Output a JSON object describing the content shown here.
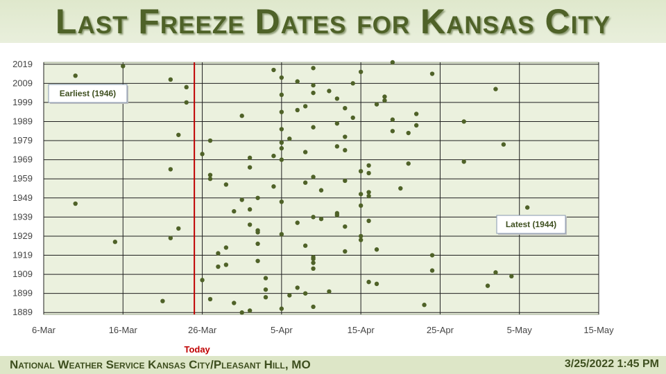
{
  "header": {
    "title": "Last Freeze Dates for Kansas City"
  },
  "footer": {
    "office": "National Weather Service  Kansas City/Pleasant Hill, MO",
    "timestamp": "3/25/2022 1:45 PM"
  },
  "colors": {
    "point": "#4f6228",
    "plot_bg": "#ebf1de",
    "grid": "#1e1e1e",
    "today_line": "#c00000",
    "title": "#4f6228"
  },
  "chart_data": {
    "type": "scatter",
    "title": "Last Freeze Dates for Kansas City",
    "x_tick_labels": [
      "6-Mar",
      "16-Mar",
      "26-Mar",
      "5-Apr",
      "15-Apr",
      "25-Apr",
      "5-May",
      "15-May"
    ],
    "x_ticks": [
      "03-06",
      "03-16",
      "03-26",
      "04-05",
      "04-15",
      "04-25",
      "05-05",
      "05-15"
    ],
    "xlim": [
      "03-06",
      "05-15"
    ],
    "y_ticks": [
      1889,
      1899,
      1909,
      1919,
      1929,
      1939,
      1949,
      1959,
      1969,
      1979,
      1989,
      1999,
      2009,
      2019
    ],
    "ylim": [
      1888,
      2020
    ],
    "grid": true,
    "today": {
      "label": "Today",
      "date": "03-25"
    },
    "annotations": [
      {
        "text": "Earliest (1946)",
        "year": 1946,
        "date": "03-10"
      },
      {
        "text": "Latest (1944)",
        "year": 1944,
        "date": "05-06"
      }
    ],
    "points": [
      {
        "year": 2020,
        "date": "04-19"
      },
      {
        "year": 2018,
        "date": "03-16"
      },
      {
        "year": 2017,
        "date": "04-09"
      },
      {
        "year": 2016,
        "date": "04-04"
      },
      {
        "year": 2015,
        "date": "04-15"
      },
      {
        "year": 2014,
        "date": "04-24"
      },
      {
        "year": 2013,
        "date": "03-10"
      },
      {
        "year": 2012,
        "date": "04-05"
      },
      {
        "year": 2011,
        "date": "03-22"
      },
      {
        "year": 2010,
        "date": "04-07"
      },
      {
        "year": 2009,
        "date": "04-14"
      },
      {
        "year": 2008,
        "date": "04-09"
      },
      {
        "year": 2007,
        "date": "03-24"
      },
      {
        "year": 2006,
        "date": "05-02"
      },
      {
        "year": 2005,
        "date": "04-11"
      },
      {
        "year": 2004,
        "date": "04-09"
      },
      {
        "year": 2003,
        "date": "04-05"
      },
      {
        "year": 2002,
        "date": "04-18"
      },
      {
        "year": 2001,
        "date": "04-12"
      },
      {
        "year": 2000,
        "date": "04-18"
      },
      {
        "year": 1999,
        "date": "03-24"
      },
      {
        "year": 1998,
        "date": "04-17"
      },
      {
        "year": 1997,
        "date": "04-08"
      },
      {
        "year": 1996,
        "date": "04-13"
      },
      {
        "year": 1995,
        "date": "04-07"
      },
      {
        "year": 1994,
        "date": "04-05"
      },
      {
        "year": 1993,
        "date": "04-22"
      },
      {
        "year": 1992,
        "date": "03-31"
      },
      {
        "year": 1991,
        "date": "04-14"
      },
      {
        "year": 1990,
        "date": "04-19"
      },
      {
        "year": 1989,
        "date": "04-28"
      },
      {
        "year": 1988,
        "date": "04-12"
      },
      {
        "year": 1987,
        "date": "04-22"
      },
      {
        "year": 1986,
        "date": "04-09"
      },
      {
        "year": 1985,
        "date": "04-05"
      },
      {
        "year": 1984,
        "date": "04-19"
      },
      {
        "year": 1983,
        "date": "04-21"
      },
      {
        "year": 1982,
        "date": "03-23"
      },
      {
        "year": 1981,
        "date": "04-13"
      },
      {
        "year": 1980,
        "date": "04-06"
      },
      {
        "year": 1979,
        "date": "03-27"
      },
      {
        "year": 1978,
        "date": "04-05"
      },
      {
        "year": 1977,
        "date": "05-03"
      },
      {
        "year": 1976,
        "date": "04-12"
      },
      {
        "year": 1975,
        "date": "04-05"
      },
      {
        "year": 1974,
        "date": "04-13"
      },
      {
        "year": 1973,
        "date": "04-08"
      },
      {
        "year": 1972,
        "date": "03-26"
      },
      {
        "year": 1971,
        "date": "04-04"
      },
      {
        "year": 1970,
        "date": "04-01"
      },
      {
        "year": 1969,
        "date": "04-05"
      },
      {
        "year": 1968,
        "date": "04-28"
      },
      {
        "year": 1967,
        "date": "04-21"
      },
      {
        "year": 1966,
        "date": "04-16"
      },
      {
        "year": 1965,
        "date": "04-01"
      },
      {
        "year": 1964,
        "date": "03-22"
      },
      {
        "year": 1963,
        "date": "04-15"
      },
      {
        "year": 1962,
        "date": "04-16"
      },
      {
        "year": 1961,
        "date": "03-27"
      },
      {
        "year": 1960,
        "date": "04-09"
      },
      {
        "year": 1959,
        "date": "03-27"
      },
      {
        "year": 1958,
        "date": "04-13"
      },
      {
        "year": 1957,
        "date": "04-08"
      },
      {
        "year": 1956,
        "date": "03-29"
      },
      {
        "year": 1955,
        "date": "04-04"
      },
      {
        "year": 1954,
        "date": "04-20"
      },
      {
        "year": 1953,
        "date": "04-10"
      },
      {
        "year": 1952,
        "date": "04-16"
      },
      {
        "year": 1951,
        "date": "04-15"
      },
      {
        "year": 1950,
        "date": "04-16"
      },
      {
        "year": 1949,
        "date": "04-02"
      },
      {
        "year": 1948,
        "date": "03-31"
      },
      {
        "year": 1947,
        "date": "04-05"
      },
      {
        "year": 1946,
        "date": "03-10"
      },
      {
        "year": 1945,
        "date": "04-15"
      },
      {
        "year": 1944,
        "date": "05-06"
      },
      {
        "year": 1943,
        "date": "04-01"
      },
      {
        "year": 1942,
        "date": "03-30"
      },
      {
        "year": 1941,
        "date": "04-12"
      },
      {
        "year": 1940,
        "date": "04-12"
      },
      {
        "year": 1939,
        "date": "04-09"
      },
      {
        "year": 1938,
        "date": "04-10"
      },
      {
        "year": 1937,
        "date": "04-16"
      },
      {
        "year": 1936,
        "date": "04-07"
      },
      {
        "year": 1935,
        "date": "04-01"
      },
      {
        "year": 1934,
        "date": "04-13"
      },
      {
        "year": 1933,
        "date": "03-23"
      },
      {
        "year": 1932,
        "date": "04-02"
      },
      {
        "year": 1931,
        "date": "04-02"
      },
      {
        "year": 1930,
        "date": "04-05"
      },
      {
        "year": 1929,
        "date": "04-15"
      },
      {
        "year": 1928,
        "date": "03-22"
      },
      {
        "year": 1927,
        "date": "04-15"
      },
      {
        "year": 1926,
        "date": "03-15"
      },
      {
        "year": 1925,
        "date": "04-02"
      },
      {
        "year": 1924,
        "date": "04-08"
      },
      {
        "year": 1923,
        "date": "03-29"
      },
      {
        "year": 1922,
        "date": "04-17"
      },
      {
        "year": 1921,
        "date": "04-13"
      },
      {
        "year": 1920,
        "date": "03-28"
      },
      {
        "year": 1919,
        "date": "04-24"
      },
      {
        "year": 1918,
        "date": "04-09"
      },
      {
        "year": 1917,
        "date": "04-09"
      },
      {
        "year": 1916,
        "date": "04-02"
      },
      {
        "year": 1915,
        "date": "04-09"
      },
      {
        "year": 1914,
        "date": "03-29"
      },
      {
        "year": 1913,
        "date": "03-28"
      },
      {
        "year": 1912,
        "date": "04-09"
      },
      {
        "year": 1911,
        "date": "04-24"
      },
      {
        "year": 1910,
        "date": "05-02"
      },
      {
        "year": 1908,
        "date": "05-04"
      },
      {
        "year": 1907,
        "date": "04-03"
      },
      {
        "year": 1906,
        "date": "03-26"
      },
      {
        "year": 1905,
        "date": "04-16"
      },
      {
        "year": 1904,
        "date": "04-17"
      },
      {
        "year": 1903,
        "date": "05-01"
      },
      {
        "year": 1902,
        "date": "04-07"
      },
      {
        "year": 1901,
        "date": "04-03"
      },
      {
        "year": 1900,
        "date": "04-11"
      },
      {
        "year": 1899,
        "date": "04-08"
      },
      {
        "year": 1898,
        "date": "04-06"
      },
      {
        "year": 1897,
        "date": "04-03"
      },
      {
        "year": 1896,
        "date": "03-27"
      },
      {
        "year": 1895,
        "date": "03-21"
      },
      {
        "year": 1894,
        "date": "03-30"
      },
      {
        "year": 1893,
        "date": "04-23"
      },
      {
        "year": 1892,
        "date": "04-09"
      },
      {
        "year": 1891,
        "date": "04-05"
      },
      {
        "year": 1890,
        "date": "04-01"
      },
      {
        "year": 1889,
        "date": "03-31"
      }
    ]
  }
}
